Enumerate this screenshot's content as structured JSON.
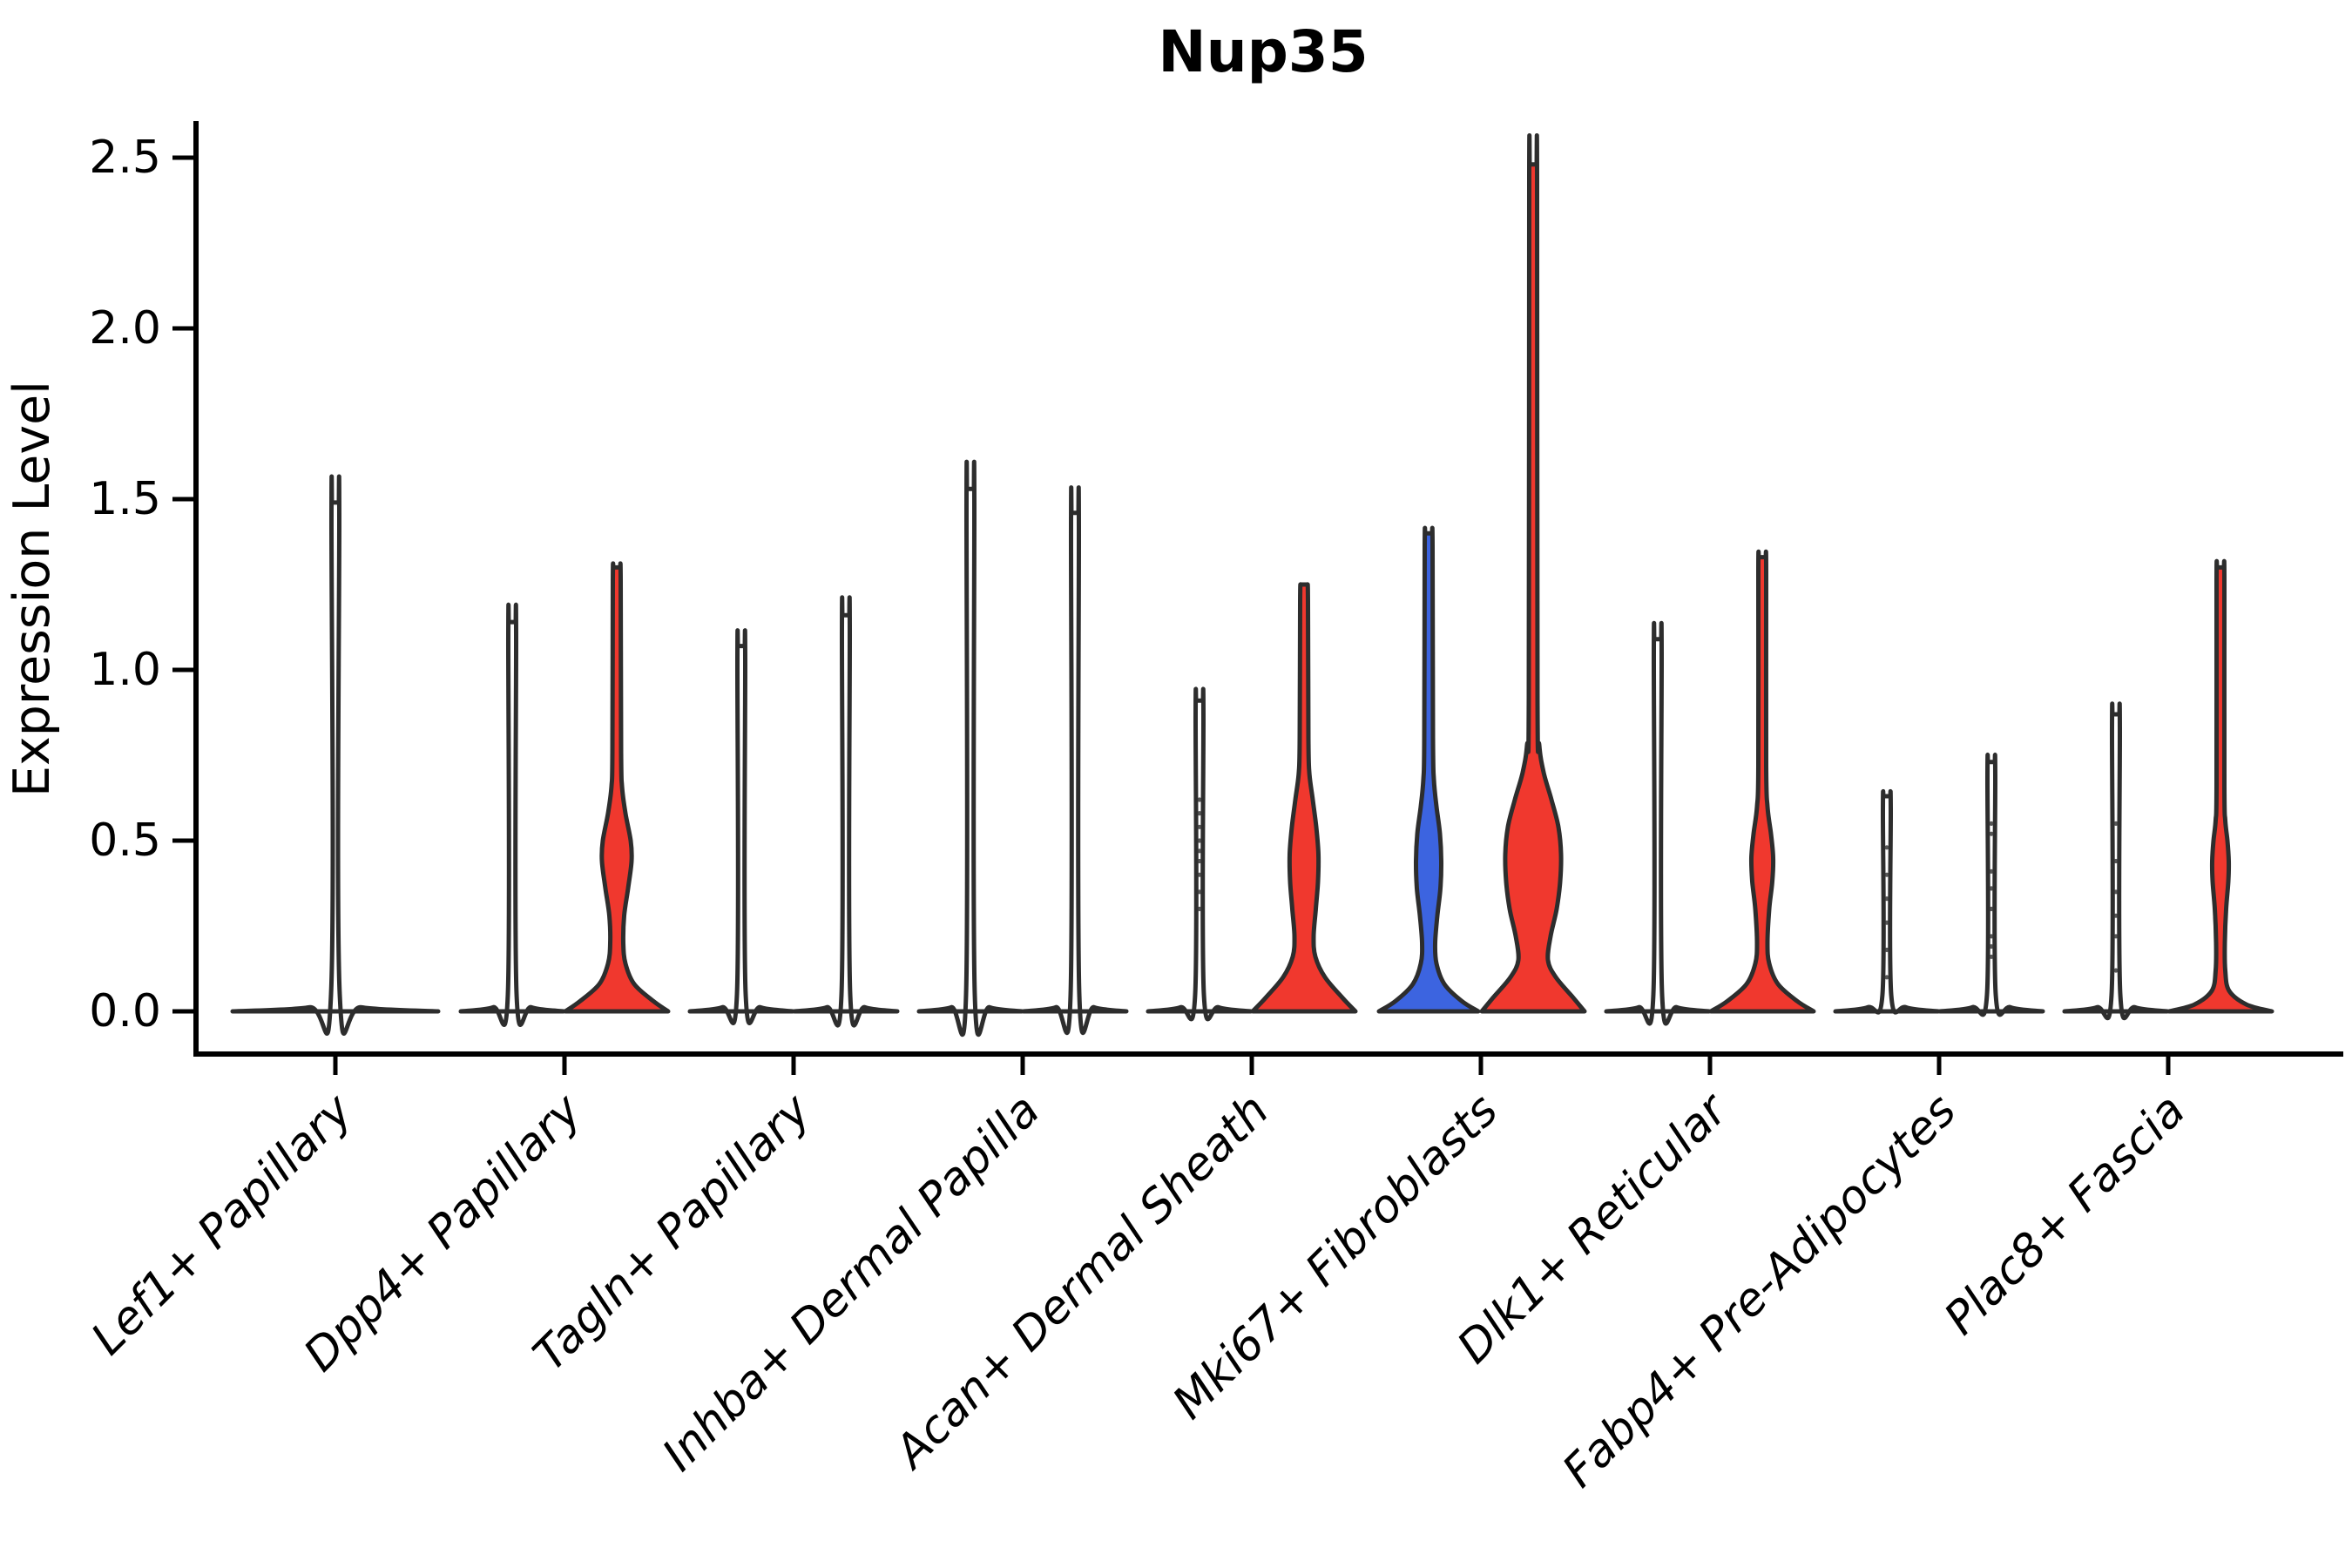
{
  "title": "Nup35",
  "y_axis": {
    "label": "Expression Level",
    "tick_labels": [
      "0.0",
      "0.5",
      "1.0",
      "1.5",
      "2.0",
      "2.5"
    ],
    "tick_values": [
      0,
      0.5,
      1.0,
      1.5,
      2.0,
      2.5
    ]
  },
  "x_axis": {
    "categories": [
      "Lef1+ Papillary",
      "Dpp4+ Papillary",
      "Tagln+ Papillary",
      "Inhba+ Dermal Papilla",
      "Acan+ Dermal Sheath",
      "Mki67+ Fibroblasts",
      "Dlk1+ Reticular",
      "Fabp4+ Pre-Adipocytes",
      "Plac8+ Fascia"
    ]
  },
  "colors": {
    "red": "#F0382E",
    "blue": "#3C64E0",
    "collapsed_fill": "#FFFFFF",
    "outline": "#2D2D2D",
    "axis": "#000000",
    "dot": "#3A3A3A"
  },
  "chart_data": {
    "type": "violin",
    "title": "Nup35",
    "xlabel": "",
    "ylabel": "Expression Level",
    "ylim": [
      0,
      2.5
    ],
    "grid": false,
    "legend": "none",
    "categories": [
      "Lef1+ Papillary",
      "Dpp4+ Papillary",
      "Tagln+ Papillary",
      "Inhba+ Dermal Papilla",
      "Acan+ Dermal Sheath",
      "Mki67+ Fibroblasts",
      "Dlk1+ Reticular",
      "Fabp4+ Pre-Adipocytes",
      "Plac8+ Fascia"
    ],
    "groups": [
      {
        "category": "Lef1+ Papillary",
        "violins": [
          {
            "side": "center",
            "color": "collapsed_fill",
            "max_expression": 1.49,
            "bulk_at_zero": true,
            "profile": [
              [
                0,
                118
              ],
              [
                0.012,
                30
              ],
              [
                0.05,
                5
              ],
              [
                1.45,
                4.5
              ],
              [
                1.49,
                4
              ]
            ],
            "dots": []
          }
        ]
      },
      {
        "category": "Dpp4+ Papillary",
        "violins": [
          {
            "side": "left",
            "color": "collapsed_fill",
            "max_expression": 1.14,
            "bulk_at_zero": true,
            "profile": [
              [
                0,
                59
              ],
              [
                0.012,
                22
              ],
              [
                0.05,
                5
              ],
              [
                1.1,
                4.5
              ],
              [
                1.14,
                4
              ]
            ],
            "dots": []
          },
          {
            "side": "right",
            "color": "red",
            "max_expression": 1.3,
            "bulge_center": 0.45,
            "profile": [
              [
                0,
                59
              ],
              [
                0.03,
                42
              ],
              [
                0.08,
                20
              ],
              [
                0.14,
                10
              ],
              [
                0.2,
                7.5
              ],
              [
                0.28,
                8.5
              ],
              [
                0.36,
                13
              ],
              [
                0.44,
                17
              ],
              [
                0.5,
                16
              ],
              [
                0.58,
                10
              ],
              [
                0.66,
                6
              ],
              [
                0.76,
                5
              ],
              [
                1.26,
                4.5
              ],
              [
                1.3,
                4
              ]
            ],
            "dots": []
          }
        ]
      },
      {
        "category": "Tagln+ Papillary",
        "violins": [
          {
            "side": "left",
            "color": "collapsed_fill",
            "max_expression": 1.07,
            "bulk_at_zero": true,
            "profile": [
              [
                0,
                59
              ],
              [
                0.012,
                22
              ],
              [
                0.05,
                5
              ],
              [
                1.03,
                4.5
              ],
              [
                1.07,
                4
              ]
            ],
            "dots": []
          },
          {
            "side": "right",
            "color": "collapsed_fill",
            "max_expression": 1.16,
            "bulk_at_zero": true,
            "profile": [
              [
                0,
                59
              ],
              [
                0.012,
                22
              ],
              [
                0.05,
                5
              ],
              [
                1.12,
                4.5
              ],
              [
                1.16,
                4
              ]
            ],
            "dots": []
          }
        ]
      },
      {
        "category": "Inhba+ Dermal Papilla",
        "violins": [
          {
            "side": "left",
            "color": "collapsed_fill",
            "max_expression": 1.53,
            "bulk_at_zero": true,
            "profile": [
              [
                0,
                59
              ],
              [
                0.012,
                22
              ],
              [
                0.05,
                5
              ],
              [
                1.49,
                4.5
              ],
              [
                1.53,
                4
              ]
            ],
            "dots": []
          },
          {
            "side": "right",
            "color": "collapsed_fill",
            "max_expression": 1.46,
            "bulk_at_zero": true,
            "profile": [
              [
                0,
                59
              ],
              [
                0.012,
                22
              ],
              [
                0.05,
                5
              ],
              [
                1.42,
                4.5
              ],
              [
                1.46,
                4
              ]
            ],
            "dots": []
          }
        ]
      },
      {
        "category": "Acan+ Dermal Sheath",
        "violins": [
          {
            "side": "left",
            "color": "collapsed_fill",
            "max_expression": 0.91,
            "bulk_at_zero": true,
            "profile": [
              [
                0,
                59
              ],
              [
                0.012,
                22
              ],
              [
                0.05,
                5
              ],
              [
                0.87,
                4.5
              ],
              [
                0.91,
                4
              ]
            ],
            "dots": [
              0.3,
              0.35,
              0.4,
              0.44,
              0.47,
              0.5,
              0.54,
              0.58,
              0.62
            ]
          },
          {
            "side": "right",
            "color": "red",
            "max_expression": 1.25,
            "bulge_center": 0.43,
            "profile": [
              [
                0,
                59
              ],
              [
                0.04,
                44
              ],
              [
                0.1,
                24
              ],
              [
                0.16,
                13
              ],
              [
                0.22,
                11
              ],
              [
                0.3,
                13.5
              ],
              [
                0.38,
                16
              ],
              [
                0.46,
                16.5
              ],
              [
                0.54,
                14
              ],
              [
                0.62,
                10
              ],
              [
                0.7,
                6
              ],
              [
                0.8,
                5
              ],
              [
                1.2,
                4.5
              ],
              [
                1.25,
                4
              ]
            ],
            "dots": []
          }
        ]
      },
      {
        "category": "Mki67+ Fibroblasts",
        "violins": [
          {
            "side": "left",
            "color": "blue",
            "max_expression": 1.4,
            "bulge_center": 0.44,
            "profile": [
              [
                0,
                57
              ],
              [
                0.03,
                38
              ],
              [
                0.08,
                18
              ],
              [
                0.14,
                9
              ],
              [
                0.2,
                7.5
              ],
              [
                0.28,
                10
              ],
              [
                0.36,
                13.5
              ],
              [
                0.44,
                14.5
              ],
              [
                0.52,
                13
              ],
              [
                0.6,
                9
              ],
              [
                0.68,
                6
              ],
              [
                0.8,
                5
              ],
              [
                1.36,
                4.5
              ],
              [
                1.4,
                4
              ]
            ],
            "dots": []
          },
          {
            "side": "right",
            "color": "red",
            "max_expression": 2.48,
            "bulge_center": 0.45,
            "profile": [
              [
                0,
                59
              ],
              [
                0.04,
                46
              ],
              [
                0.1,
                26
              ],
              [
                0.15,
                17
              ],
              [
                0.22,
                20
              ],
              [
                0.3,
                27
              ],
              [
                0.38,
                31
              ],
              [
                0.46,
                32
              ],
              [
                0.54,
                29
              ],
              [
                0.62,
                21
              ],
              [
                0.7,
                12
              ],
              [
                0.78,
                7
              ],
              [
                0.92,
                5
              ],
              [
                2.44,
                4.5
              ],
              [
                2.48,
                4
              ]
            ],
            "dots": []
          }
        ]
      },
      {
        "category": "Dlk1+ Reticular",
        "violins": [
          {
            "side": "left",
            "color": "collapsed_fill",
            "max_expression": 1.09,
            "bulk_at_zero": true,
            "profile": [
              [
                0,
                59
              ],
              [
                0.012,
                22
              ],
              [
                0.05,
                5
              ],
              [
                1.05,
                4.5
              ],
              [
                1.09,
                4
              ]
            ],
            "dots": []
          },
          {
            "side": "right",
            "color": "red",
            "max_expression": 1.33,
            "bulge_center": 0.44,
            "profile": [
              [
                0,
                59
              ],
              [
                0.03,
                40
              ],
              [
                0.08,
                18
              ],
              [
                0.14,
                8
              ],
              [
                0.2,
                6
              ],
              [
                0.3,
                8
              ],
              [
                0.38,
                11.5
              ],
              [
                0.45,
                12.5
              ],
              [
                0.52,
                10
              ],
              [
                0.6,
                6
              ],
              [
                0.72,
                4.5
              ],
              [
                1.29,
                4.5
              ],
              [
                1.33,
                4
              ]
            ],
            "dots": []
          }
        ]
      },
      {
        "category": "Fabp4+ Pre-Adipocytes",
        "violins": [
          {
            "side": "left",
            "color": "collapsed_fill",
            "max_expression": 0.63,
            "bulk_at_zero": true,
            "profile": [
              [
                0,
                59
              ],
              [
                0.012,
                22
              ],
              [
                0.05,
                5
              ],
              [
                0.59,
                4.5
              ],
              [
                0.63,
                4
              ]
            ],
            "dots": [
              0.1,
              0.18,
              0.26,
              0.33,
              0.4,
              0.48
            ]
          },
          {
            "side": "right",
            "color": "collapsed_fill",
            "max_expression": 0.73,
            "bulk_at_zero": true,
            "profile": [
              [
                0,
                59
              ],
              [
                0.012,
                22
              ],
              [
                0.05,
                5
              ],
              [
                0.69,
                4.5
              ],
              [
                0.73,
                4
              ]
            ],
            "dots": [
              0.16,
              0.19,
              0.22,
              0.3,
              0.36,
              0.41,
              0.52,
              0.55
            ]
          }
        ]
      },
      {
        "category": "Plac8+ Fascia",
        "violins": [
          {
            "side": "left",
            "color": "collapsed_fill",
            "max_expression": 0.87,
            "bulk_at_zero": true,
            "profile": [
              [
                0,
                59
              ],
              [
                0.012,
                22
              ],
              [
                0.05,
                5
              ],
              [
                0.83,
                4.5
              ],
              [
                0.87,
                4
              ]
            ],
            "dots": [
              0.12,
              0.22,
              0.28,
              0.35,
              0.44,
              0.55
            ]
          },
          {
            "side": "right",
            "color": "red",
            "max_expression": 1.3,
            "bulge_center": 0.42,
            "profile": [
              [
                0,
                59
              ],
              [
                0.02,
                30
              ],
              [
                0.06,
                10
              ],
              [
                0.12,
                5.5
              ],
              [
                0.2,
                5
              ],
              [
                0.3,
                6.5
              ],
              [
                0.38,
                9
              ],
              [
                0.44,
                9.5
              ],
              [
                0.5,
                8
              ],
              [
                0.56,
                5.5
              ],
              [
                0.66,
                4.5
              ],
              [
                1.26,
                4.5
              ],
              [
                1.3,
                4
              ]
            ],
            "dots": []
          }
        ]
      }
    ]
  }
}
